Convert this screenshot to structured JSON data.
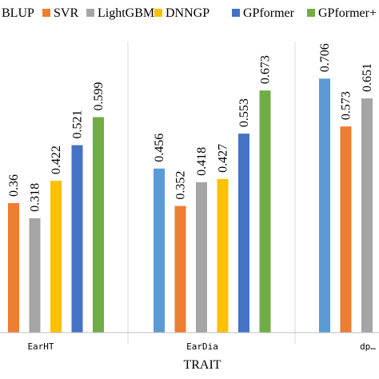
{
  "chart_data": {
    "type": "bar",
    "xlabel": "TRAIT",
    "ylabel": "",
    "ylim": [
      0,
      0.8
    ],
    "grid": false,
    "legend_position": "top",
    "categories": [
      "EarHT",
      "EarDia",
      "dp…"
    ],
    "series": [
      {
        "name": "BLUP",
        "color": "#5B9BD5",
        "values": [
          null,
          0.456,
          0.706
        ]
      },
      {
        "name": "SVR",
        "color": "#ED7D31",
        "values": [
          0.36,
          0.352,
          0.573
        ]
      },
      {
        "name": "LightGBM",
        "color": "#A5A5A5",
        "values": [
          0.318,
          0.418,
          0.651
        ]
      },
      {
        "name": "DNNGP",
        "color": "#FFC000",
        "values": [
          0.422,
          0.427,
          null
        ]
      },
      {
        "name": "GPformer",
        "color": "#4472C4",
        "values": [
          0.521,
          0.553,
          null
        ]
      },
      {
        "name": "GPformer+",
        "color": "#70AD47",
        "values": [
          0.599,
          0.673,
          null
        ]
      }
    ]
  }
}
